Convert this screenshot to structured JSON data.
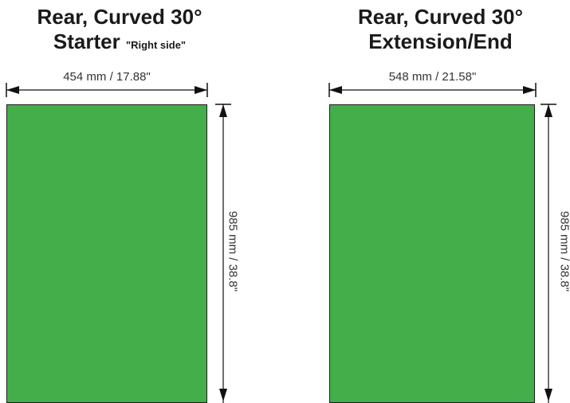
{
  "panels": [
    {
      "title_line1": "Rear, Curved 30°",
      "title_line2": "Starter",
      "title_note": "\"Right side\"",
      "width_label": "454 mm / 17.88\"",
      "height_label": "985 mm / 38.8\"",
      "fill_color": "#43ae4a"
    },
    {
      "title_line1": "Rear, Curved 30°",
      "title_line2": "Extension/End",
      "width_label": "548 mm / 21.58\"",
      "height_label": "985 mm / 38.8\"",
      "fill_color": "#43ae4a"
    }
  ]
}
